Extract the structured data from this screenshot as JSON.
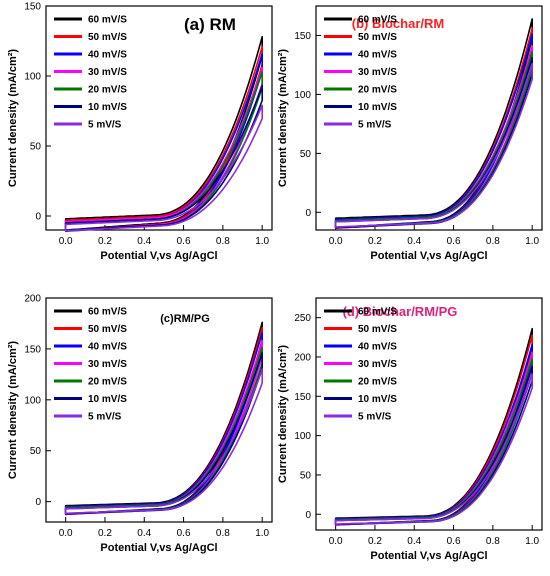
{
  "chart_data": [
    {
      "type": "line",
      "title": "(a) RM",
      "title_color": "#000000",
      "xlabel": "Potential V,vs Ag/AgCl",
      "ylabel": "Current denesity (mA/cm²)",
      "xlim": [
        -0.1,
        1.05
      ],
      "ylim": [
        -10,
        150
      ],
      "xticks": [
        "0.0",
        "0.2",
        "0.4",
        "0.6",
        "0.8",
        "1.0"
      ],
      "yticks": [
        "0",
        "50",
        "100",
        "150"
      ],
      "legend_position": "top-left",
      "series": [
        {
          "name": "60 mV/S",
          "color": "#000000",
          "peak": 122,
          "base": -2
        },
        {
          "name": "50 mV/S",
          "color": "#ff0000",
          "peak": 115,
          "base": -3
        },
        {
          "name": "40 mV/S",
          "color": "#0000ff",
          "peak": 110,
          "base": -4
        },
        {
          "name": "30 mV/S",
          "color": "#ff00ff",
          "peak": 100,
          "base": -4
        },
        {
          "name": "20 mV/S",
          "color": "#007700",
          "peak": 97,
          "base": -5
        },
        {
          "name": "10 mV/S",
          "color": "#000080",
          "peak": 87,
          "base": -5
        },
        {
          "name": "5 mV/S",
          "color": "#8a2be2",
          "peak": 73,
          "base": -6
        }
      ]
    },
    {
      "type": "line",
      "title": "(b) Biochar/RM",
      "title_color": "#ff2020",
      "xlabel": "Potential V,vs Ag/AgCl",
      "ylabel": "Current denesity (mA/cm²)",
      "xlim": [
        -0.1,
        1.05
      ],
      "ylim": [
        -15,
        175
      ],
      "xticks": [
        "0.0",
        "0.2",
        "0.4",
        "0.6",
        "0.8",
        "1.0"
      ],
      "yticks": [
        "0",
        "50",
        "100",
        "150"
      ],
      "legend_position": "top-left",
      "series": [
        {
          "name": "60 mV/S",
          "color": "#000000",
          "peak": 158,
          "base": -5
        },
        {
          "name": "50 mV/S",
          "color": "#ff0000",
          "peak": 150,
          "base": -6
        },
        {
          "name": "40 mV/S",
          "color": "#0000ff",
          "peak": 145,
          "base": -6
        },
        {
          "name": "30 mV/S",
          "color": "#ff00ff",
          "peak": 135,
          "base": -7
        },
        {
          "name": "20 mV/S",
          "color": "#007700",
          "peak": 130,
          "base": -7
        },
        {
          "name": "10 mV/S",
          "color": "#000080",
          "peak": 125,
          "base": -8
        },
        {
          "name": "5 mV/S",
          "color": "#8a2be2",
          "peak": 120,
          "base": -8
        }
      ]
    },
    {
      "type": "line",
      "title": "(c)RM/PG",
      "title_color": "#000000",
      "xlabel": "Potential V,vs Ag/AgCl",
      "ylabel": "Current denesity (mA/cm²)",
      "xlim": [
        -0.1,
        1.05
      ],
      "ylim": [
        -20,
        200
      ],
      "xticks": [
        "0.0",
        "0.2",
        "0.4",
        "0.6",
        "0.8",
        "1.0"
      ],
      "yticks": [
        "0",
        "50",
        "100",
        "150",
        "200"
      ],
      "legend_position": "top-left",
      "series": [
        {
          "name": "60 mV/S",
          "color": "#000000",
          "peak": 170,
          "base": -4
        },
        {
          "name": "50 mV/S",
          "color": "#ff0000",
          "peak": 165,
          "base": -5
        },
        {
          "name": "40 mV/S",
          "color": "#0000ff",
          "peak": 160,
          "base": -5
        },
        {
          "name": "30 mV/S",
          "color": "#ff00ff",
          "peak": 152,
          "base": -6
        },
        {
          "name": "20 mV/S",
          "color": "#007700",
          "peak": 145,
          "base": -6
        },
        {
          "name": "10 mV/S",
          "color": "#000080",
          "peak": 140,
          "base": -7
        },
        {
          "name": "5 mV/S",
          "color": "#8a2be2",
          "peak": 124,
          "base": -7
        }
      ]
    },
    {
      "type": "line",
      "title": "(d) Biochar/RM/PG",
      "title_color": "#e0207a",
      "xlabel": "Potential V,vs Ag/AgCl",
      "ylabel": "Current denesity (mA/cm²)",
      "xlim": [
        -0.1,
        1.05
      ],
      "ylim": [
        -20,
        275
      ],
      "xticks": [
        "0.0",
        "0.2",
        "0.4",
        "0.6",
        "0.8",
        "1.0"
      ],
      "yticks": [
        "0",
        "50",
        "100",
        "150",
        "200",
        "250"
      ],
      "legend_position": "top-left",
      "series": [
        {
          "name": "60 mV/S",
          "color": "#000000",
          "peak": 230,
          "base": -5
        },
        {
          "name": "50 mV/S",
          "color": "#ff0000",
          "peak": 222,
          "base": -6
        },
        {
          "name": "40 mV/S",
          "color": "#0000ff",
          "peak": 210,
          "base": -6
        },
        {
          "name": "30 mV/S",
          "color": "#ff00ff",
          "peak": 200,
          "base": -7
        },
        {
          "name": "20 mV/S",
          "color": "#007700",
          "peak": 192,
          "base": -7
        },
        {
          "name": "10 mV/S",
          "color": "#000080",
          "peak": 182,
          "base": -8
        },
        {
          "name": "5 mV/S",
          "color": "#8a2be2",
          "peak": 172,
          "base": -8
        }
      ]
    }
  ]
}
